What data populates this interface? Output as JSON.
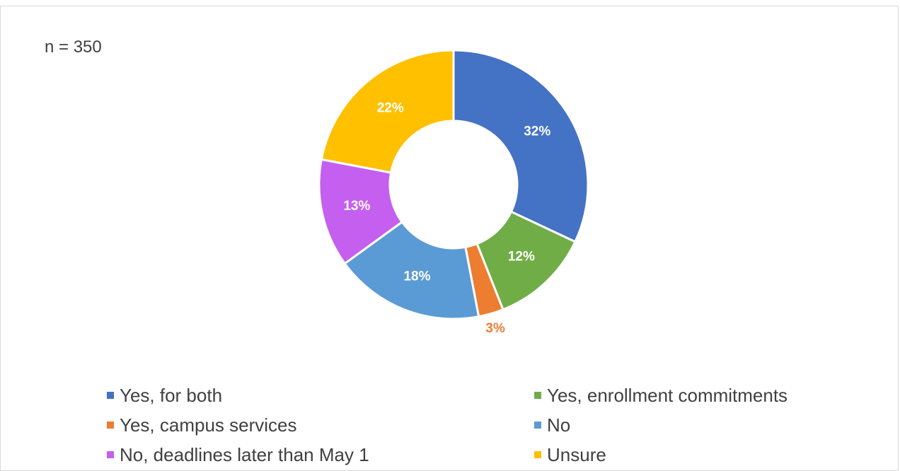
{
  "chart_data": {
    "type": "pie",
    "note": "n = 350",
    "categories": [
      "Yes, for both",
      "Yes, enrollment commitments",
      "Yes, campus services",
      "No",
      "No, deadlines later than May 1",
      "Unsure"
    ],
    "values": [
      32,
      12,
      3,
      18,
      13,
      22
    ],
    "labels": [
      "32%",
      "12%",
      "3%",
      "18%",
      "13%",
      "22%"
    ],
    "colors": [
      "#4472c4",
      "#70ad47",
      "#ed7d31",
      "#5b9bd5",
      "#c55ff0",
      "#ffc000"
    ],
    "label_colors": [
      "#ffffff",
      "#ffffff",
      "#ed7d31",
      "#ffffff",
      "#ffffff",
      "#ffffff"
    ],
    "label_outside": [
      false,
      false,
      true,
      false,
      false,
      false
    ],
    "donut": true,
    "legend_position": "bottom"
  }
}
